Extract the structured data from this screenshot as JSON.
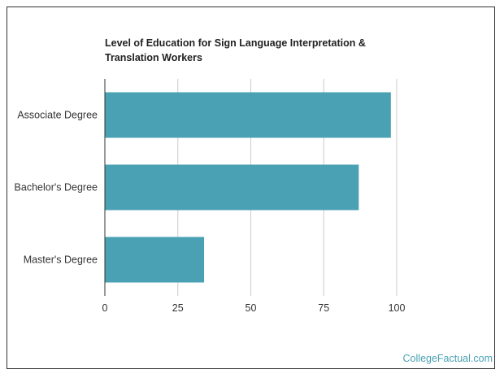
{
  "chart_data": {
    "type": "bar",
    "orientation": "horizontal",
    "title": "Level of Education for Sign Language Interpretation & Translation Workers",
    "categories": [
      "Associate Degree",
      "Bachelor's Degree",
      "Master's Degree"
    ],
    "values": [
      98,
      87,
      34
    ],
    "xlim": [
      0,
      100
    ],
    "xticks": [
      0,
      25,
      50,
      75,
      100
    ],
    "xlabel": "",
    "ylabel": "",
    "grid": true,
    "bar_color": "#4aa1b3"
  },
  "source": {
    "watermark": "CollegeFactual.com"
  }
}
